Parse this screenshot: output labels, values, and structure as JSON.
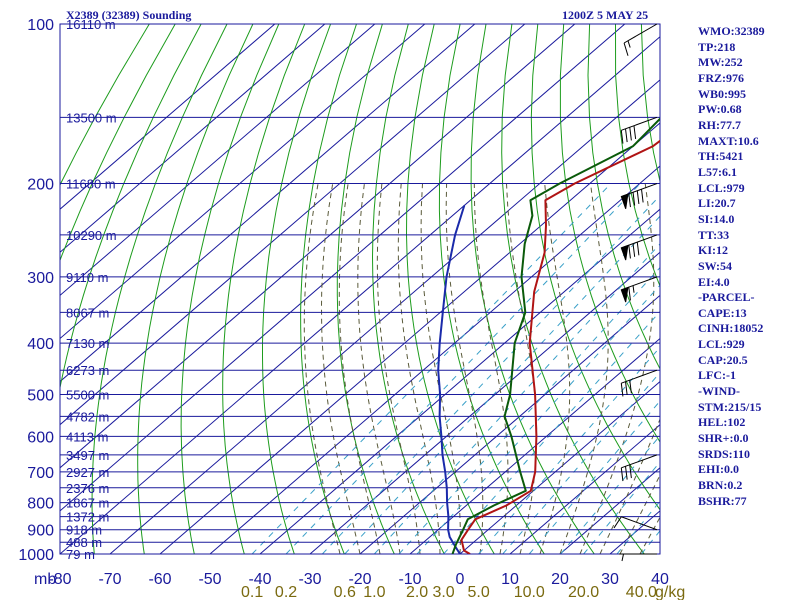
{
  "chart_data": {
    "type": "skew-t",
    "header": {
      "station": "X2389 (32389) Sounding",
      "time": "1200Z  5 MAY 25"
    },
    "y_unit_label": "mb",
    "pressure_ticks": [
      100,
      200,
      300,
      400,
      500,
      600,
      700,
      800,
      900,
      1000
    ],
    "pressure_lines": [
      100,
      150,
      200,
      250,
      300,
      350,
      400,
      450,
      500,
      550,
      600,
      650,
      700,
      750,
      800,
      850,
      900,
      950,
      1000
    ],
    "temperature_ticks": [
      -80,
      -70,
      -60,
      -50,
      -40,
      -30,
      -20,
      -10,
      0,
      10,
      20,
      30,
      40
    ],
    "temperature_tick_labels": [
      "-80",
      "-70",
      "-60",
      "-50",
      "-40",
      "-30",
      "-20",
      "-10",
      "0",
      "10",
      "20",
      "30",
      "40"
    ],
    "xlim": [
      -80,
      40
    ],
    "ylim": [
      1000,
      100
    ],
    "mixing_ratio_unit": "g/kg",
    "mixing_ratio_labels": [
      {
        "label": "0.1",
        "value": 0.1
      },
      {
        "label": "0.2",
        "value": 0.2
      },
      {
        "label": "0.6",
        "value": 0.6
      },
      {
        "label": "1.0",
        "value": 1.0
      },
      {
        "label": "2.0",
        "value": 2.0
      },
      {
        "label": "3.0",
        "value": 3.0
      },
      {
        "label": "5.0",
        "value": 5.0
      },
      {
        "label": "10.0",
        "value": 10.0
      },
      {
        "label": "20.0",
        "value": 20.0
      },
      {
        "label": "40.0",
        "value": 40.0
      }
    ],
    "height_labels": [
      {
        "p": 100,
        "label": "16110 m"
      },
      {
        "p": 150,
        "label": "13500 m"
      },
      {
        "p": 200,
        "label": "11680 m"
      },
      {
        "p": 250,
        "label": "10290 m"
      },
      {
        "p": 300,
        "label": "9110 m"
      },
      {
        "p": 350,
        "label": "8067 m"
      },
      {
        "p": 400,
        "label": "7130 m"
      },
      {
        "p": 450,
        "label": "6273 m"
      },
      {
        "p": 500,
        "label": "5500 m"
      },
      {
        "p": 550,
        "label": "4782 m"
      },
      {
        "p": 600,
        "label": "4113 m"
      },
      {
        "p": 650,
        "label": "3497 m"
      },
      {
        "p": 700,
        "label": "2927 m"
      },
      {
        "p": 750,
        "label": "2376 m"
      },
      {
        "p": 800,
        "label": "1867 m"
      },
      {
        "p": 850,
        "label": "1372 m"
      },
      {
        "p": 900,
        "label": "918 m"
      },
      {
        "p": 950,
        "label": "488 m"
      },
      {
        "p": 1000,
        "label": "79 m"
      }
    ],
    "temperature_profile": [
      {
        "p": 1000,
        "t": 2.0
      },
      {
        "p": 985,
        "t": 0.0
      },
      {
        "p": 940,
        "t": -3.0
      },
      {
        "p": 900,
        "t": -4.0
      },
      {
        "p": 860,
        "t": -5.0
      },
      {
        "p": 810,
        "t": -2.0
      },
      {
        "p": 760,
        "t": -0.5
      },
      {
        "p": 700,
        "t": -4.0
      },
      {
        "p": 600,
        "t": -12.0
      },
      {
        "p": 500,
        "t": -22.0
      },
      {
        "p": 400,
        "t": -35.0
      },
      {
        "p": 320,
        "t": -46.0
      },
      {
        "p": 270,
        "t": -53.0
      },
      {
        "p": 240,
        "t": -59.0
      },
      {
        "p": 215,
        "t": -65.0
      },
      {
        "p": 200,
        "t": -63.0
      },
      {
        "p": 170,
        "t": -56.0
      },
      {
        "p": 150,
        "t": -55.0
      },
      {
        "p": 140,
        "t": -58.0
      },
      {
        "p": 120,
        "t": -55.0
      },
      {
        "p": 105,
        "t": -56.0
      },
      {
        "p": 100,
        "t": -55.0
      }
    ],
    "dewpoint_profile": [
      {
        "p": 1000,
        "td": -1.5
      },
      {
        "p": 960,
        "td": -3.0
      },
      {
        "p": 900,
        "td": -5.0
      },
      {
        "p": 860,
        "td": -6.5
      },
      {
        "p": 810,
        "td": -4.5
      },
      {
        "p": 760,
        "td": -1.5
      },
      {
        "p": 700,
        "td": -7.0
      },
      {
        "p": 600,
        "td": -17.0
      },
      {
        "p": 550,
        "td": -23.0
      },
      {
        "p": 500,
        "td": -27.0
      },
      {
        "p": 400,
        "td": -38.0
      },
      {
        "p": 350,
        "td": -43.0
      },
      {
        "p": 300,
        "td": -52.0
      },
      {
        "p": 260,
        "td": -59.0
      },
      {
        "p": 230,
        "td": -64.0
      },
      {
        "p": 215,
        "td": -68.0
      },
      {
        "p": 200,
        "td": -66.0
      },
      {
        "p": 170,
        "td": -60.0
      },
      {
        "p": 150,
        "td": -61.0
      },
      {
        "p": 140,
        "td": -62.0
      },
      {
        "p": 120,
        "td": -59.0
      },
      {
        "p": 105,
        "td": -61.0
      },
      {
        "p": 100,
        "td": -61.0
      }
    ],
    "parcel_profile": [
      {
        "p": 1000,
        "t": 0.0
      },
      {
        "p": 970,
        "t": -2.5
      },
      {
        "p": 929,
        "t": -6.0
      },
      {
        "p": 900,
        "t": -8.0
      },
      {
        "p": 850,
        "t": -11.0
      },
      {
        "p": 800,
        "t": -14.5
      },
      {
        "p": 750,
        "t": -18.0
      },
      {
        "p": 700,
        "t": -22.0
      },
      {
        "p": 650,
        "t": -26.5
      },
      {
        "p": 600,
        "t": -31.0
      },
      {
        "p": 550,
        "t": -36.0
      },
      {
        "p": 500,
        "t": -41.0
      },
      {
        "p": 450,
        "t": -47.0
      },
      {
        "p": 400,
        "t": -53.0
      },
      {
        "p": 350,
        "t": -59.5
      },
      {
        "p": 300,
        "t": -67.0
      },
      {
        "p": 250,
        "t": -75.0
      },
      {
        "p": 220,
        "t": -80.0
      }
    ],
    "wind_barbs": [
      {
        "p": 1000,
        "dir": 270,
        "spd": 5
      },
      {
        "p": 900,
        "dir": 290,
        "spd": 10
      },
      {
        "p": 650,
        "dir": 250,
        "spd": 30
      },
      {
        "p": 450,
        "dir": 250,
        "spd": 30
      },
      {
        "p": 300,
        "dir": 250,
        "spd": 65
      },
      {
        "p": 250,
        "dir": 250,
        "spd": 80
      },
      {
        "p": 200,
        "dir": 250,
        "spd": 90
      },
      {
        "p": 150,
        "dir": 250,
        "spd": 40
      },
      {
        "p": 100,
        "dir": 240,
        "spd": 15
      }
    ],
    "indices": [
      "WMO:32389",
      "TP:218",
      "MW:252",
      "FRZ:976",
      "WB0:995",
      "PW:0.68",
      "RH:77.7",
      "MAXT:10.6",
      "TH:5421",
      "L57:6.1",
      "LCL:979",
      "LI:20.7",
      "SI:14.0",
      "TT:33",
      "KI:12",
      "SW:54",
      "EI:4.0",
      "-PARCEL-",
      "CAPE:13",
      "CINH:18052",
      "LCL:929",
      "CAP:20.5",
      "LFC:-1",
      "-WIND-",
      "STM:215/15",
      "HEL:102",
      "SHR+:0.0",
      "SRDS:110",
      "EHI:0.0",
      "BRN:0.2",
      "BSHR:77"
    ],
    "colors": {
      "frame": "#1a1a9c",
      "dry_adiabat": "#1d9c1d",
      "moist_adiabat": "#5a5a3a",
      "mixing_ratio": "#3aa0c8",
      "temperature": "#b01414",
      "dewpoint": "#0a5a0a",
      "parcel": "#1a2aaa",
      "mixing_label": "#7a6a10"
    }
  }
}
